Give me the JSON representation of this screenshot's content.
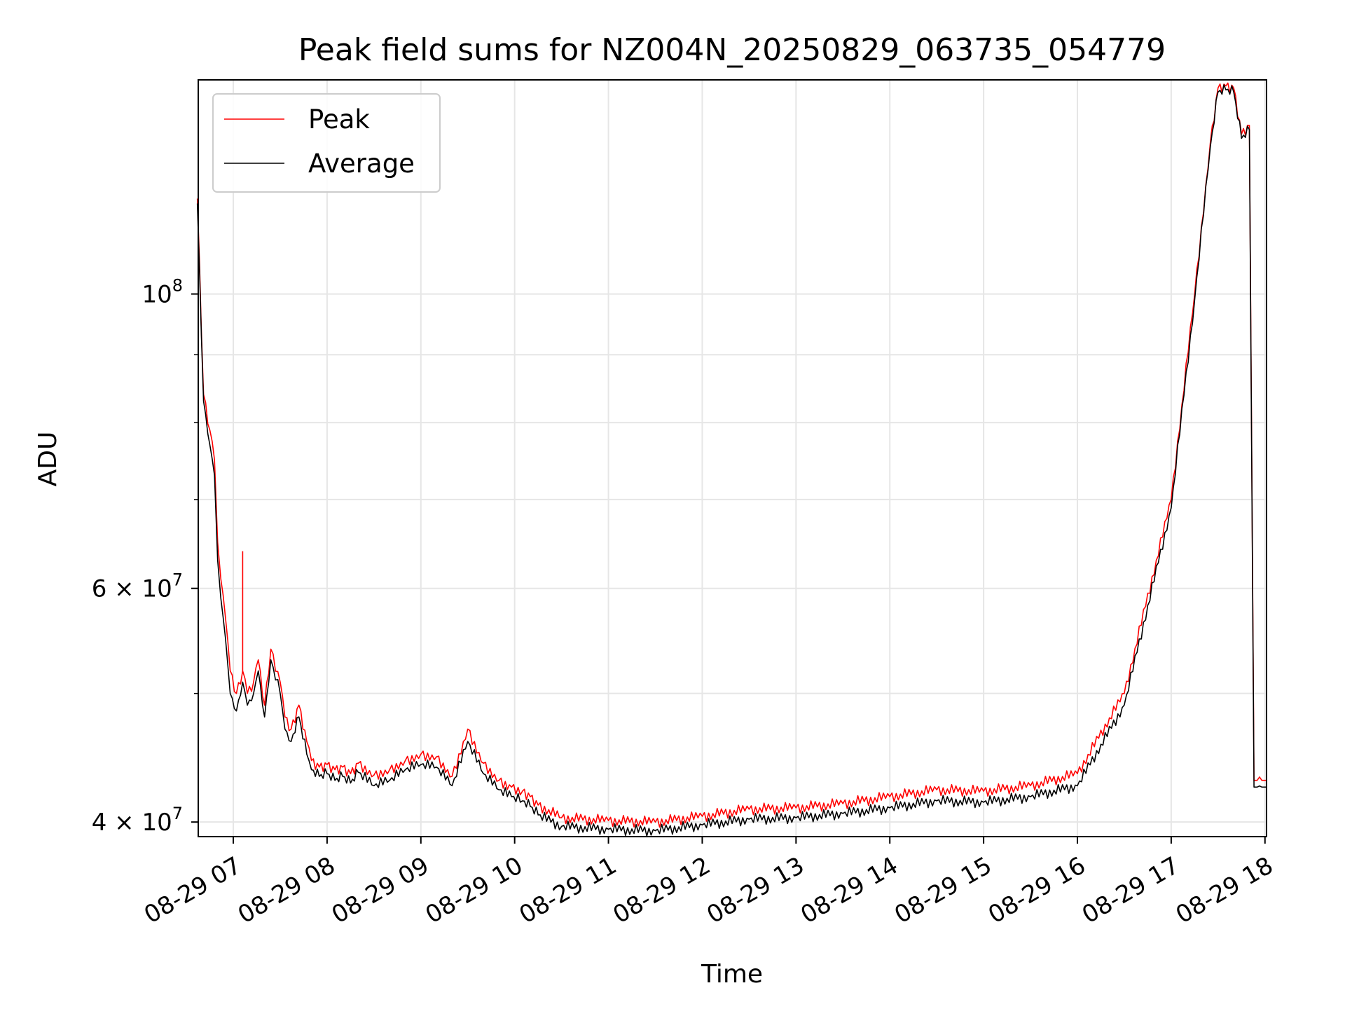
{
  "chart_data": {
    "type": "line",
    "title": "Peak field sums for NZ004N_20250829_063735_054779",
    "xlabel": "Time",
    "ylabel": "ADU",
    "yscale": "log",
    "ylim": [
      39000000,
      145000000
    ],
    "xlim": [
      "2025-08-29 06:37:35",
      "2025-08-29 18:01:00"
    ],
    "grid": true,
    "legend": "top-left",
    "x_ticks": [
      {
        "label": "08-29 07",
        "value": "2025-08-29 07:00"
      },
      {
        "label": "08-29 08",
        "value": "2025-08-29 08:00"
      },
      {
        "label": "08-29 09",
        "value": "2025-08-29 09:00"
      },
      {
        "label": "08-29 10",
        "value": "2025-08-29 10:00"
      },
      {
        "label": "08-29 11",
        "value": "2025-08-29 11:00"
      },
      {
        "label": "08-29 12",
        "value": "2025-08-29 12:00"
      },
      {
        "label": "08-29 13",
        "value": "2025-08-29 13:00"
      },
      {
        "label": "08-29 14",
        "value": "2025-08-29 14:00"
      },
      {
        "label": "08-29 15",
        "value": "2025-08-29 15:00"
      },
      {
        "label": "08-29 16",
        "value": "2025-08-29 16:00"
      },
      {
        "label": "08-29 17",
        "value": "2025-08-29 17:00"
      },
      {
        "label": "08-29 18",
        "value": "2025-08-29 18:00"
      }
    ],
    "y_ticks": [
      {
        "mantissa": "",
        "base": "10",
        "exp": "8",
        "value": 100000000
      },
      {
        "mantissa": "6 × ",
        "base": "10",
        "exp": "7",
        "value": 60000000
      },
      {
        "mantissa": "4 × ",
        "base": "10",
        "exp": "7",
        "value": 40000000
      }
    ],
    "y_minor_ticks": [
      50000000,
      70000000,
      80000000,
      90000000
    ],
    "series": [
      {
        "name": "Peak",
        "color": "#ff0000",
        "x": [
          "2025-08-29 06:37",
          "2025-08-29 06:41",
          "2025-08-29 06:45",
          "2025-08-29 06:48",
          "2025-08-29 06:50",
          "2025-08-29 06:52",
          "2025-08-29 06:55",
          "2025-08-29 06:58",
          "2025-08-29 07:02",
          "2025-08-29 07:06",
          "2025-08-29 07:09",
          "2025-08-29 07:13",
          "2025-08-29 07:16",
          "2025-08-29 07:20",
          "2025-08-29 07:24",
          "2025-08-29 07:30",
          "2025-08-29 07:33",
          "2025-08-29 07:37",
          "2025-08-29 07:42",
          "2025-08-29 07:47",
          "2025-08-29 07:50",
          "2025-08-29 07:55",
          "2025-08-29 08:00",
          "2025-08-29 08:05",
          "2025-08-29 08:10",
          "2025-08-29 08:15",
          "2025-08-29 08:20",
          "2025-08-29 08:30",
          "2025-08-29 08:40",
          "2025-08-29 08:50",
          "2025-08-29 09:00",
          "2025-08-29 09:10",
          "2025-08-29 09:20",
          "2025-08-29 09:30",
          "2025-08-29 09:40",
          "2025-08-29 09:50",
          "2025-08-29 09:58",
          "2025-08-29 10:05",
          "2025-08-29 10:10",
          "2025-08-29 10:15",
          "2025-08-29 10:30",
          "2025-08-29 11:00",
          "2025-08-29 11:30",
          "2025-08-29 12:00",
          "2025-08-29 12:30",
          "2025-08-29 13:00",
          "2025-08-29 13:30",
          "2025-08-29 14:00",
          "2025-08-29 14:30",
          "2025-08-29 15:00",
          "2025-08-29 15:30",
          "2025-08-29 16:00",
          "2025-08-29 16:30",
          "2025-08-29 17:00",
          "2025-08-29 17:15",
          "2025-08-29 17:25",
          "2025-08-29 17:30",
          "2025-08-29 17:35",
          "2025-08-29 17:40",
          "2025-08-29 17:45",
          "2025-08-29 17:50",
          "2025-08-29 17:53",
          "2025-08-29 17:55",
          "2025-08-29 17:58",
          "2025-08-29 17:59",
          "2025-08-29 18:01"
        ],
        "y": [
          118000000,
          84000000,
          79000000,
          75000000,
          65000000,
          61000000,
          57000000,
          52000000,
          50000000,
          52000000,
          50000000,
          51000000,
          53000000,
          49000000,
          54000000,
          51000000,
          48000000,
          47000000,
          49000000,
          46000000,
          44500000,
          44000000,
          44200000,
          43800000,
          44000000,
          43500000,
          44300000,
          43400000,
          43800000,
          44500000,
          45000000,
          44800000,
          43300000,
          47000000,
          44300000,
          43000000,
          42500000,
          42200000,
          41800000,
          41200000,
          40300000,
          40100000,
          40000000,
          40400000,
          40900000,
          41000000,
          41300000,
          41800000,
          42300000,
          42200000,
          42600000,
          43500000,
          50000000,
          70000000,
          100000000,
          130000000,
          143000000,
          143500000,
          143000000,
          132000000,
          134000000,
          43000000,
          43000000,
          43000000,
          43000000,
          43000000
        ],
        "spikes": [
          {
            "x": "2025-08-29 07:06",
            "y": 64000000
          }
        ]
      },
      {
        "name": "Average",
        "color": "#000000",
        "x": [
          "2025-08-29 06:37",
          "2025-08-29 06:41",
          "2025-08-29 06:45",
          "2025-08-29 06:48",
          "2025-08-29 06:50",
          "2025-08-29 06:52",
          "2025-08-29 06:55",
          "2025-08-29 06:58",
          "2025-08-29 07:02",
          "2025-08-29 07:06",
          "2025-08-29 07:09",
          "2025-08-29 07:13",
          "2025-08-29 07:16",
          "2025-08-29 07:20",
          "2025-08-29 07:24",
          "2025-08-29 07:30",
          "2025-08-29 07:33",
          "2025-08-29 07:37",
          "2025-08-29 07:42",
          "2025-08-29 07:47",
          "2025-08-29 07:50",
          "2025-08-29 07:55",
          "2025-08-29 08:00",
          "2025-08-29 08:05",
          "2025-08-29 08:10",
          "2025-08-29 08:15",
          "2025-08-29 08:20",
          "2025-08-29 08:30",
          "2025-08-29 08:40",
          "2025-08-29 08:50",
          "2025-08-29 09:00",
          "2025-08-29 09:10",
          "2025-08-29 09:20",
          "2025-08-29 09:30",
          "2025-08-29 09:40",
          "2025-08-29 09:50",
          "2025-08-29 09:58",
          "2025-08-29 10:05",
          "2025-08-29 10:10",
          "2025-08-29 10:15",
          "2025-08-29 10:30",
          "2025-08-29 11:00",
          "2025-08-29 11:30",
          "2025-08-29 12:00",
          "2025-08-29 12:30",
          "2025-08-29 13:00",
          "2025-08-29 13:30",
          "2025-08-29 14:00",
          "2025-08-29 14:30",
          "2025-08-29 15:00",
          "2025-08-29 15:30",
          "2025-08-29 16:00",
          "2025-08-29 16:30",
          "2025-08-29 17:00",
          "2025-08-29 17:15",
          "2025-08-29 17:25",
          "2025-08-29 17:30",
          "2025-08-29 17:35",
          "2025-08-29 17:40",
          "2025-08-29 17:45",
          "2025-08-29 17:50",
          "2025-08-29 17:53",
          "2025-08-29 17:55",
          "2025-08-29 17:58",
          "2025-08-29 17:59",
          "2025-08-29 18:01"
        ],
        "y": [
          117000000,
          83000000,
          77000000,
          73000000,
          63000000,
          59000000,
          55000000,
          50000000,
          48500000,
          51000000,
          49000000,
          50000000,
          52000000,
          48000000,
          53000000,
          50000000,
          47000000,
          46000000,
          48000000,
          45000000,
          43800000,
          43300000,
          43500000,
          43000000,
          43300000,
          42800000,
          43600000,
          42600000,
          43000000,
          43800000,
          44200000,
          44000000,
          42600000,
          46000000,
          43500000,
          42300000,
          41800000,
          41500000,
          41100000,
          40500000,
          39700000,
          39500000,
          39400000,
          39800000,
          40200000,
          40300000,
          40600000,
          41000000,
          41500000,
          41400000,
          41800000,
          42600000,
          49000000,
          69000000,
          99000000,
          129000000,
          142000000,
          142500000,
          142000000,
          131000000,
          133000000,
          42500000,
          42500000,
          42500000,
          42500000,
          42500000
        ]
      }
    ]
  }
}
